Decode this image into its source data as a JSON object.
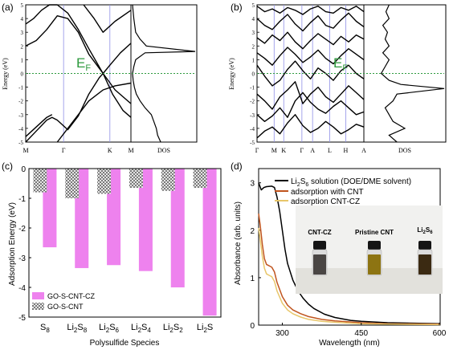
{
  "figure": {
    "panel_a": {
      "label": "(a)"
    },
    "panel_b": {
      "label": "(b)"
    },
    "panel_c": {
      "label": "(c)"
    },
    "panel_d": {
      "label": "(d)"
    }
  },
  "chart_data": [
    {
      "id": "a",
      "type": "line",
      "subtype": "band-structure-with-dos",
      "ylabel": "Energy (eV)",
      "ylim": [
        -5,
        5
      ],
      "yticks": [
        "5",
        "4",
        "3",
        "2",
        "1",
        "0",
        "-1",
        "-2",
        "-3",
        "-4",
        "-5"
      ],
      "kpoints": [
        "M",
        "Γ",
        "K",
        "M"
      ],
      "dos_label": "DOS",
      "fermi_label": "E",
      "fermi_subscript": "F",
      "fermi_level": 0,
      "colors": {
        "bands": "#000000",
        "fermi": "#2e9a3e",
        "kline": "#8f8fe6"
      },
      "bands": [
        {
          "x": [
            0,
            0.2,
            0.4,
            0.5,
            0.6,
            0.8,
            1.0,
            1.2,
            1.4,
            1.47
          ],
          "y": [
            -5.0,
            -4.2,
            -3.4,
            -3.2,
            -3.4,
            -4.1,
            -3.1,
            -1.5,
            -0.3,
            0.0
          ]
        },
        {
          "x": [
            1.47,
            1.6,
            1.8,
            2.0
          ],
          "y": [
            0.0,
            0.6,
            1.5,
            2.2
          ]
        },
        {
          "x": [
            0,
            0.2,
            0.4,
            0.5
          ],
          "y": [
            -4.6,
            -3.9,
            -3.2,
            -3.0
          ]
        },
        {
          "x": [
            0,
            0.2,
            0.4,
            0.6,
            0.8,
            1.0,
            1.2,
            1.47,
            1.7,
            2.0
          ],
          "y": [
            2.0,
            2.4,
            3.2,
            4.2,
            4.0,
            3.0,
            1.4,
            0.0,
            -1.2,
            -2.2
          ]
        },
        {
          "x": [
            0,
            0.15,
            0.3,
            0.45,
            0.6,
            0.8,
            1.0,
            1.2,
            1.47
          ],
          "y": [
            3.6,
            4.0,
            4.6,
            5.0,
            5.0,
            4.4,
            3.2,
            1.8,
            0.0
          ]
        },
        {
          "x": [
            1.47,
            1.65,
            1.85,
            2.0
          ],
          "y": [
            0.0,
            -1.5,
            -2.7,
            -3.2
          ]
        },
        {
          "x": [
            0.6,
            0.8,
            1.0,
            1.2,
            1.47,
            1.7,
            2.0
          ],
          "y": [
            -5.0,
            -4.0,
            -3.0,
            -2.0,
            -1.2,
            -0.9,
            -0.7
          ]
        },
        {
          "x": [
            1.1,
            1.3,
            1.47,
            1.7,
            2.0
          ],
          "y": [
            5.0,
            4.0,
            3.0,
            3.8,
            4.6
          ]
        }
      ],
      "dos": {
        "energy": [
          -5,
          -4.5,
          -4.0,
          -3.5,
          -3.0,
          -2.5,
          -2.0,
          -1.5,
          -1.0,
          -0.5,
          0,
          0.5,
          1.0,
          1.5,
          1.6,
          2.0,
          2.5,
          3.0,
          4.0,
          5.0
        ],
        "value": [
          0.45,
          0.4,
          0.38,
          0.34,
          0.3,
          0.2,
          0.12,
          0.06,
          0.03,
          0.01,
          0.0,
          0.02,
          0.05,
          0.2,
          1.0,
          0.22,
          0.12,
          0.05,
          0.02,
          0.0
        ]
      }
    },
    {
      "id": "b",
      "type": "line",
      "subtype": "band-structure-with-dos",
      "ylabel": "Energy (eV)",
      "ylim": [
        -5,
        5
      ],
      "yticks": [
        "5",
        "4",
        "3",
        "2",
        "1",
        "0",
        "-1",
        "-2",
        "-3",
        "-4",
        "-5"
      ],
      "kpoints": [
        "Γ",
        "M",
        "K",
        "Γ",
        "A",
        "L",
        "H",
        "A"
      ],
      "dos_label": "DOS",
      "fermi_label": "E",
      "fermi_subscript": "F",
      "fermi_level": 0,
      "colors": {
        "bands": "#000000",
        "fermi": "#2e9a3e",
        "kline": "#8f8fe6"
      },
      "bands": [
        {
          "x": [
            0,
            0.5,
            1,
            1.5,
            2,
            2.5,
            3,
            3.5,
            4,
            4.5,
            5,
            5.5,
            6,
            6.5,
            7
          ],
          "y": [
            -4.7,
            -4.2,
            -3.9,
            -4.4,
            -3.6,
            -3.0,
            -3.8,
            -4.3,
            -4.0,
            -3.5,
            -3.9,
            -4.4,
            -4.1,
            -3.7,
            -3.9
          ]
        },
        {
          "x": [
            0,
            0.5,
            1,
            1.5,
            2,
            2.5,
            3,
            3.5,
            4,
            4.5,
            5,
            5.5,
            6,
            6.5,
            7
          ],
          "y": [
            -3.0,
            -3.5,
            -3.1,
            -2.5,
            -3.2,
            -2.0,
            -1.4,
            -2.1,
            -2.6,
            -2.9,
            -2.4,
            -2.0,
            -2.5,
            -3.0,
            -2.8
          ]
        },
        {
          "x": [
            0,
            0.5,
            1,
            1.5,
            2,
            2.5,
            3,
            3.5,
            4,
            4.5,
            5,
            5.5,
            6,
            6.5,
            7
          ],
          "y": [
            -1.5,
            -2.0,
            -2.6,
            -1.7,
            -1.2,
            -0.6,
            -2.2,
            -1.5,
            -1.0,
            -1.7,
            -2.1,
            -1.5,
            -0.9,
            -1.4,
            -1.9
          ]
        },
        {
          "x": [
            0,
            0.5,
            1,
            1.5,
            2,
            2.5,
            3,
            3.5,
            4,
            4.5,
            5,
            5.5,
            6,
            6.5,
            7
          ],
          "y": [
            0.6,
            -0.2,
            -0.9,
            -0.5,
            0.3,
            0.9,
            0.2,
            -0.4,
            0.4,
            0.0,
            -0.5,
            0.2,
            0.6,
            0.0,
            -0.4
          ]
        },
        {
          "x": [
            0,
            0.5,
            1,
            1.5,
            2,
            2.5,
            3,
            3.5,
            4,
            4.5,
            5,
            5.5,
            6,
            6.5,
            7
          ],
          "y": [
            1.5,
            1.1,
            0.6,
            1.3,
            1.9,
            1.4,
            0.8,
            1.2,
            1.7,
            1.1,
            0.7,
            1.3,
            1.8,
            1.4,
            1.0
          ]
        },
        {
          "x": [
            0,
            0.5,
            1,
            1.5,
            2,
            2.5,
            3,
            3.5,
            4,
            4.5,
            5,
            5.5,
            6,
            6.5,
            7
          ],
          "y": [
            2.6,
            2.2,
            2.8,
            2.4,
            3.0,
            2.3,
            1.8,
            2.4,
            2.9,
            2.5,
            2.1,
            2.7,
            2.3,
            2.8,
            2.5
          ]
        },
        {
          "x": [
            0,
            0.5,
            1,
            1.5,
            2,
            2.5,
            3,
            3.5,
            4,
            4.5,
            5,
            5.5,
            6,
            6.5,
            7
          ],
          "y": [
            4.0,
            3.5,
            3.2,
            3.8,
            4.3,
            3.6,
            3.1,
            3.7,
            4.2,
            3.5,
            3.3,
            3.9,
            4.4,
            3.8,
            3.4
          ]
        },
        {
          "x": [
            0,
            0.5,
            1,
            1.5,
            2,
            2.5,
            3,
            3.5,
            4,
            4.5,
            5,
            5.5,
            6,
            6.5,
            7
          ],
          "y": [
            4.9,
            4.5,
            4.7,
            4.4,
            4.8,
            4.6,
            4.3,
            4.7,
            4.9,
            4.5,
            4.4,
            4.8,
            4.6,
            4.9,
            4.5
          ]
        }
      ],
      "dos": {
        "energy": [
          -5,
          -4.5,
          -4.0,
          -3.5,
          -3.0,
          -2.5,
          -2.0,
          -1.5,
          -1.1,
          -0.8,
          -0.5,
          0,
          0.5,
          1.0,
          1.5,
          2.0,
          2.5,
          3.0,
          3.5,
          4.0,
          4.5,
          5.0
        ],
        "value": [
          0.4,
          0.3,
          0.5,
          0.35,
          0.3,
          0.25,
          0.35,
          0.4,
          1.0,
          0.45,
          0.3,
          0.2,
          0.25,
          0.3,
          0.22,
          0.3,
          0.25,
          0.28,
          0.22,
          0.3,
          0.26,
          0.3
        ]
      }
    },
    {
      "id": "c",
      "type": "bar",
      "xlabel": "Polysulfide Species",
      "ylabel": "Adsorption Energy (eV)",
      "ylim": [
        -5,
        0
      ],
      "yticks": [
        "0",
        "-1",
        "-2",
        "-3",
        "-4",
        "-5"
      ],
      "categories": [
        {
          "base": "S",
          "sub": "8",
          "post": "",
          "sub2": ""
        },
        {
          "base": "Li",
          "sub": "2",
          "post": "S",
          "sub2": "8"
        },
        {
          "base": "Li",
          "sub": "2",
          "post": "S",
          "sub2": "6"
        },
        {
          "base": "Li",
          "sub": "2",
          "post": "S",
          "sub2": "4"
        },
        {
          "base": "Li",
          "sub": "2",
          "post": "S",
          "sub2": "2"
        },
        {
          "base": "Li",
          "sub": "2",
          "post": "S",
          "sub2": ""
        }
      ],
      "series": [
        {
          "name": "GO-S-CNT-CZ",
          "color": "#ee82ee",
          "values": [
            -2.65,
            -3.35,
            -3.25,
            -3.45,
            -4.0,
            -4.95
          ]
        },
        {
          "name": "GO-S-CNT",
          "color": "#9a9a9a",
          "pattern": "checker",
          "values": [
            -0.8,
            -1.0,
            -0.85,
            -0.65,
            -0.75,
            -0.65
          ]
        }
      ],
      "legend_position": "bottom-left",
      "grid": false
    },
    {
      "id": "d",
      "type": "line",
      "xlabel": "Wavelength (nm)",
      "ylabel": "Absorbance (arb. units)",
      "xlim": [
        255,
        600
      ],
      "ylim": [
        0,
        3.3
      ],
      "xticks": [
        "300",
        "450",
        "600"
      ],
      "yticks": [
        "0",
        "1",
        "2",
        "3"
      ],
      "series": [
        {
          "name": "Li2S6 solution (DOE/DME solvent)",
          "legend": {
            "pre": "Li",
            "s1": "2",
            "mid": "S",
            "s2": "6",
            "post": " solution (DOE/DME solvent)"
          },
          "color": "#000000",
          "x": [
            255,
            260,
            265,
            270,
            280,
            285,
            290,
            295,
            300,
            305,
            310,
            320,
            330,
            340,
            350,
            360,
            380,
            400,
            430,
            450,
            500,
            550,
            600
          ],
          "y": [
            3.0,
            2.85,
            2.9,
            2.92,
            2.93,
            2.9,
            2.7,
            2.4,
            2.0,
            1.6,
            1.3,
            0.95,
            0.72,
            0.56,
            0.44,
            0.35,
            0.23,
            0.16,
            0.1,
            0.08,
            0.05,
            0.04,
            0.03
          ]
        },
        {
          "name": "adsorption with CNT",
          "legend": {
            "pre": "adsorption with CNT",
            "s1": "",
            "mid": "",
            "s2": "",
            "post": ""
          },
          "color": "#c0541e",
          "x": [
            255,
            258,
            262,
            266,
            270,
            275,
            280,
            285,
            290,
            300,
            310,
            320,
            335,
            350,
            375,
            400,
            450,
            500,
            600
          ],
          "y": [
            2.35,
            2.1,
            1.7,
            1.4,
            1.28,
            1.25,
            1.22,
            1.12,
            0.9,
            0.6,
            0.42,
            0.32,
            0.24,
            0.18,
            0.12,
            0.09,
            0.05,
            0.03,
            0.02
          ]
        },
        {
          "name": "adsorption CNT-CZ",
          "legend": {
            "pre": "adsorption CNT-CZ",
            "s1": "",
            "mid": "",
            "s2": "",
            "post": ""
          },
          "color": "#e8c66a",
          "x": [
            255,
            258,
            262,
            266,
            270,
            275,
            280,
            285,
            290,
            300,
            310,
            320,
            335,
            350,
            375,
            400,
            450,
            500,
            600
          ],
          "y": [
            2.05,
            1.8,
            1.45,
            1.2,
            1.08,
            1.05,
            1.02,
            0.92,
            0.72,
            0.46,
            0.32,
            0.24,
            0.17,
            0.12,
            0.08,
            0.06,
            0.03,
            0.02,
            0.01
          ]
        }
      ],
      "inset": {
        "vials": [
          {
            "label": "CNT-CZ",
            "liquid_color": "#4a4644"
          },
          {
            "label": "Pristine CNT",
            "liquid_color": "#8d7412"
          },
          {
            "label_pre": "Li",
            "label_s1": "2",
            "label_mid": "S",
            "label_s2": "6",
            "liquid_color": "#3b2a12"
          }
        ]
      }
    }
  ]
}
